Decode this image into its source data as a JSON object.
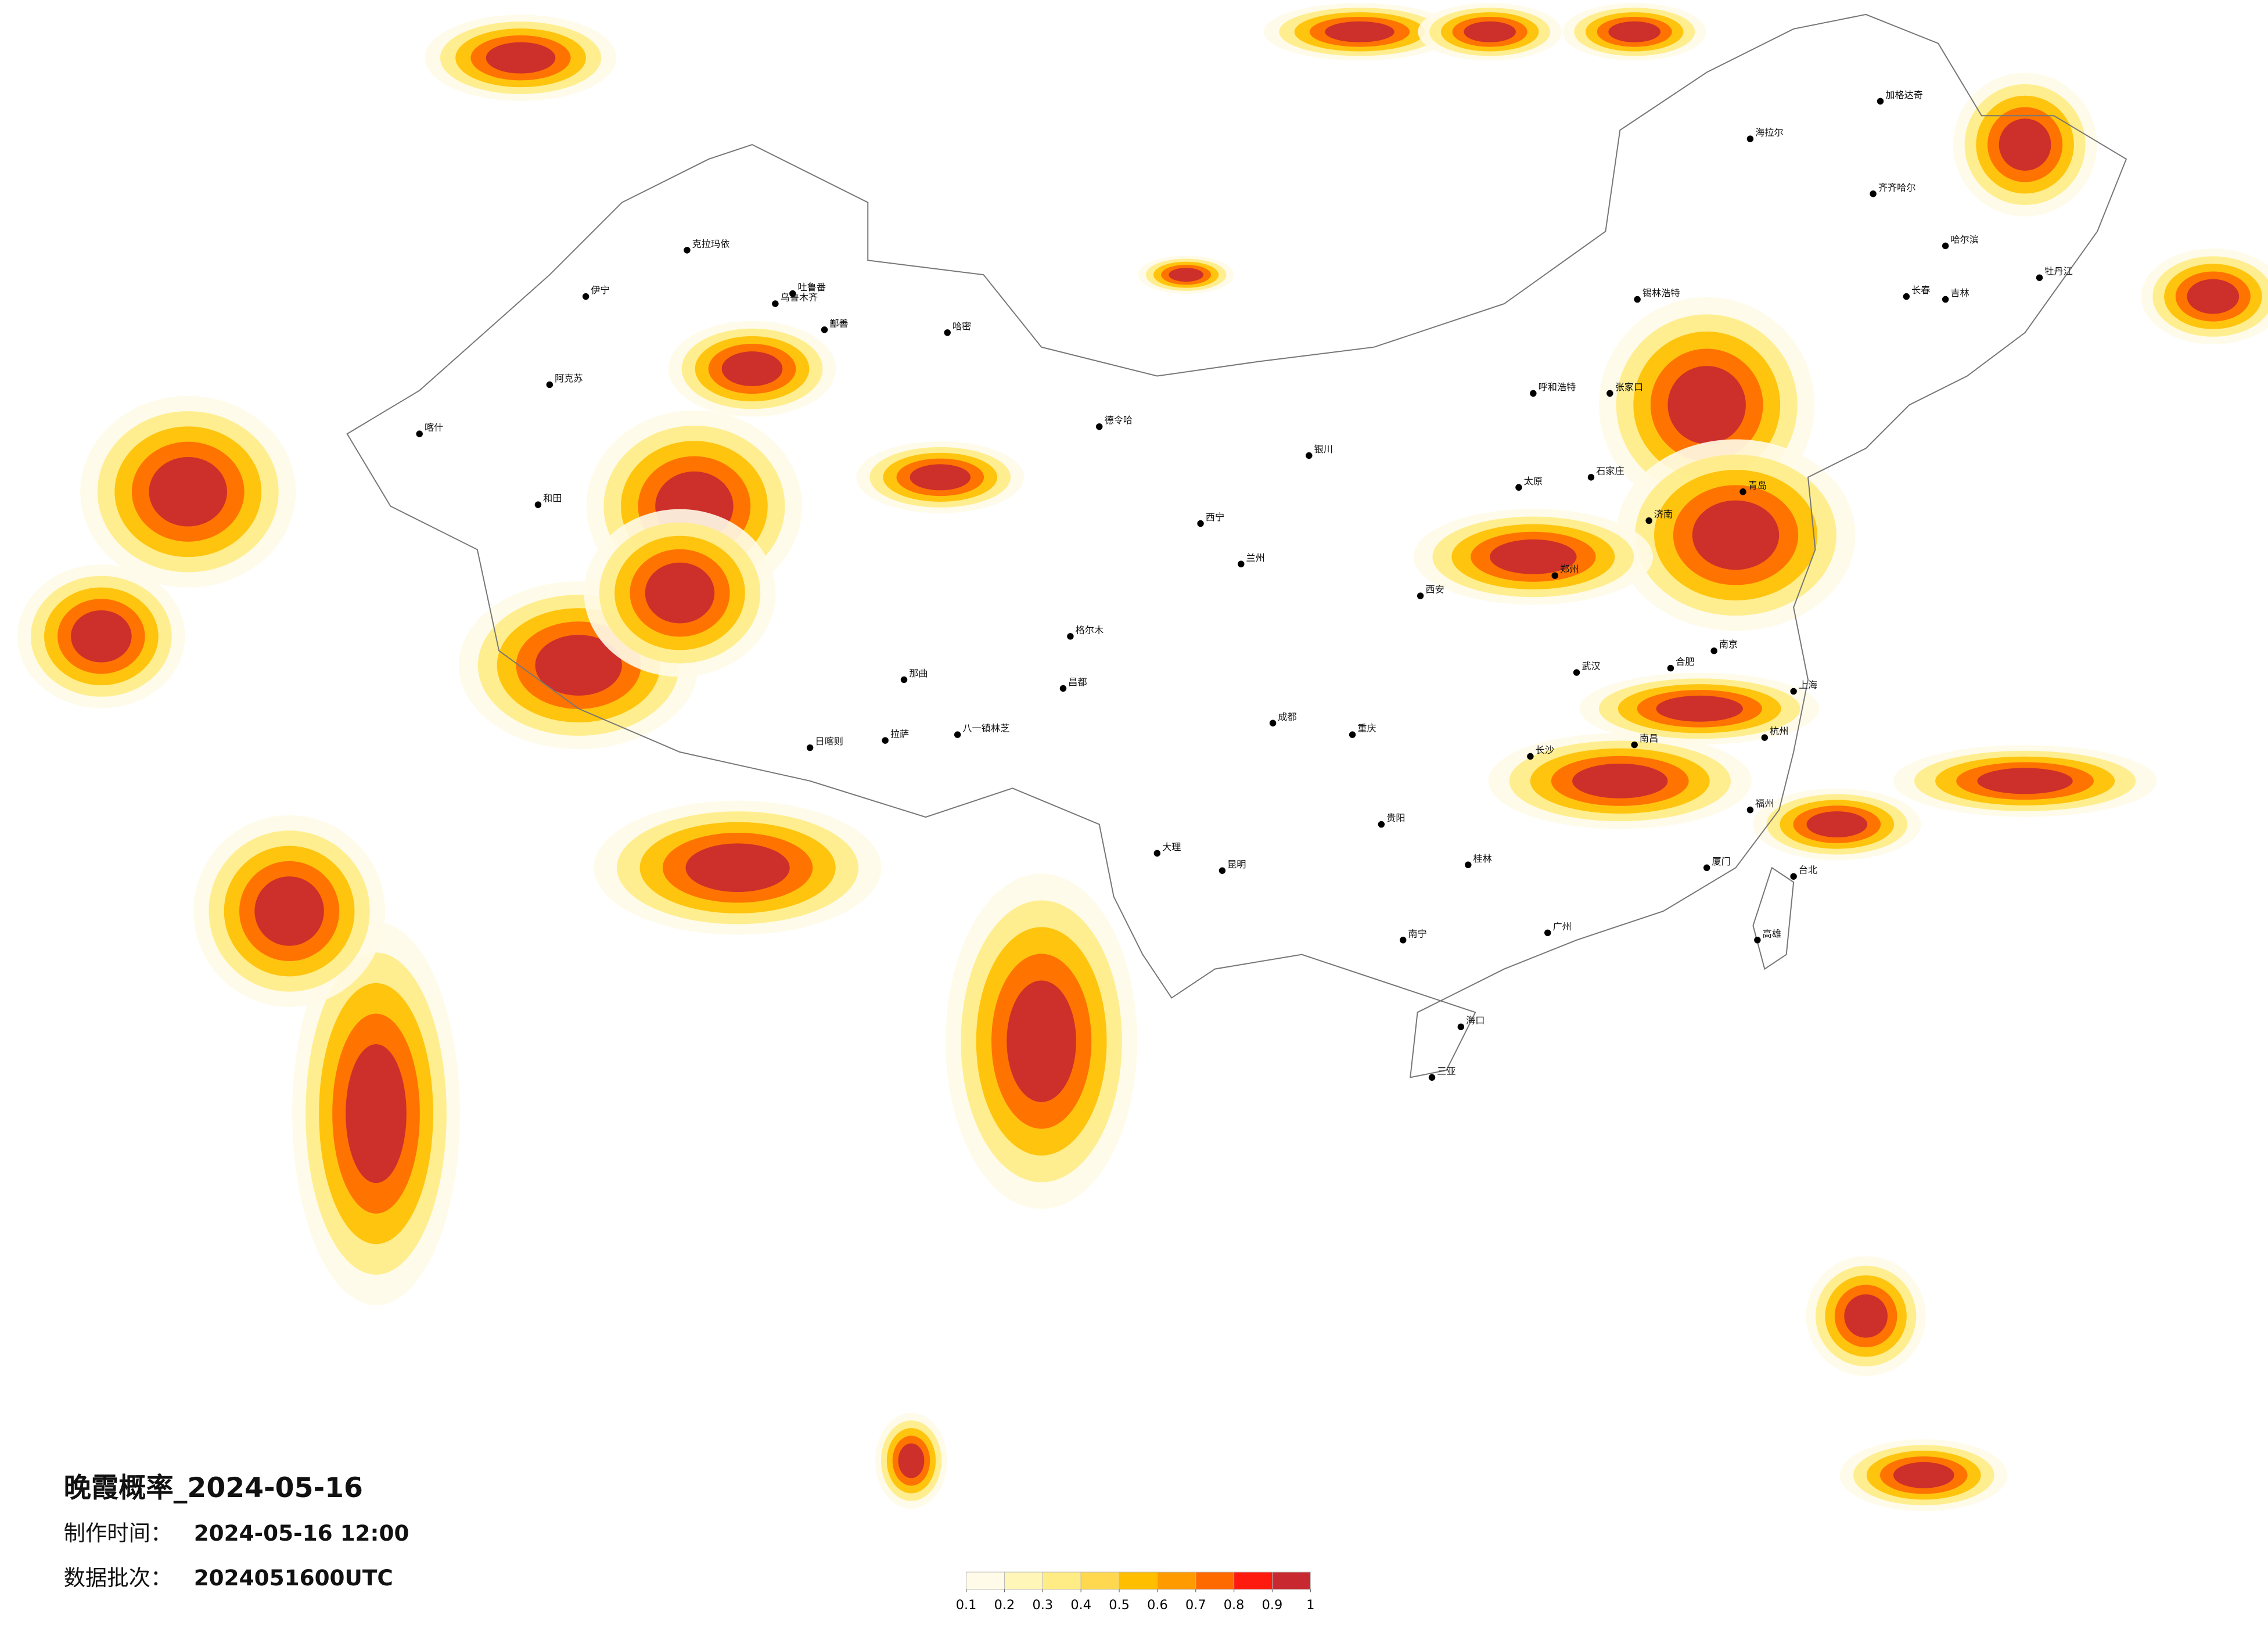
{
  "title": "晚霞概率_2024-05-16",
  "made_time": {
    "label": "制作时间：",
    "value": "2024-05-16 12:00"
  },
  "batch": {
    "label": "数据批次：",
    "value": "2024051600UTC"
  },
  "colorbar": {
    "ticks": [
      0.1,
      0.2,
      0.3,
      0.4,
      0.5,
      0.6,
      0.7,
      0.8,
      0.9,
      1
    ],
    "colors": [
      "#fffbe8",
      "#fff6b8",
      "#ffec85",
      "#ffd84f",
      "#ffbf00",
      "#ff9a00",
      "#ff6a00",
      "#ff1a10",
      "#c8282f"
    ]
  },
  "cities": [
    "克拉玛依",
    "乌鲁木齐",
    "伊宁",
    "阿克苏",
    "喀什",
    "和田",
    "哈密",
    "吐鲁番",
    "鄯善",
    "日喀则",
    "拉萨",
    "八一镇林芝",
    "那曲",
    "昌都",
    "格尔木",
    "德令哈",
    "西宁",
    "兰州",
    "银川",
    "呼和浩特",
    "海拉尔",
    "加格达奇",
    "齐齐哈尔",
    "哈尔滨",
    "长春",
    "吉林",
    "牡丹江",
    "锡林浩特",
    "张家口",
    "石家庄",
    "太原",
    "郑州",
    "济南",
    "青岛",
    "西安",
    "成都",
    "重庆",
    "贵阳",
    "昆明",
    "大理",
    "南宁",
    "桂林",
    "长沙",
    "武汉",
    "南昌",
    "合肥",
    "南京",
    "上海",
    "杭州",
    "福州",
    "厦门",
    "台北",
    "高雄",
    "海口",
    "三亚",
    "广州"
  ]
}
